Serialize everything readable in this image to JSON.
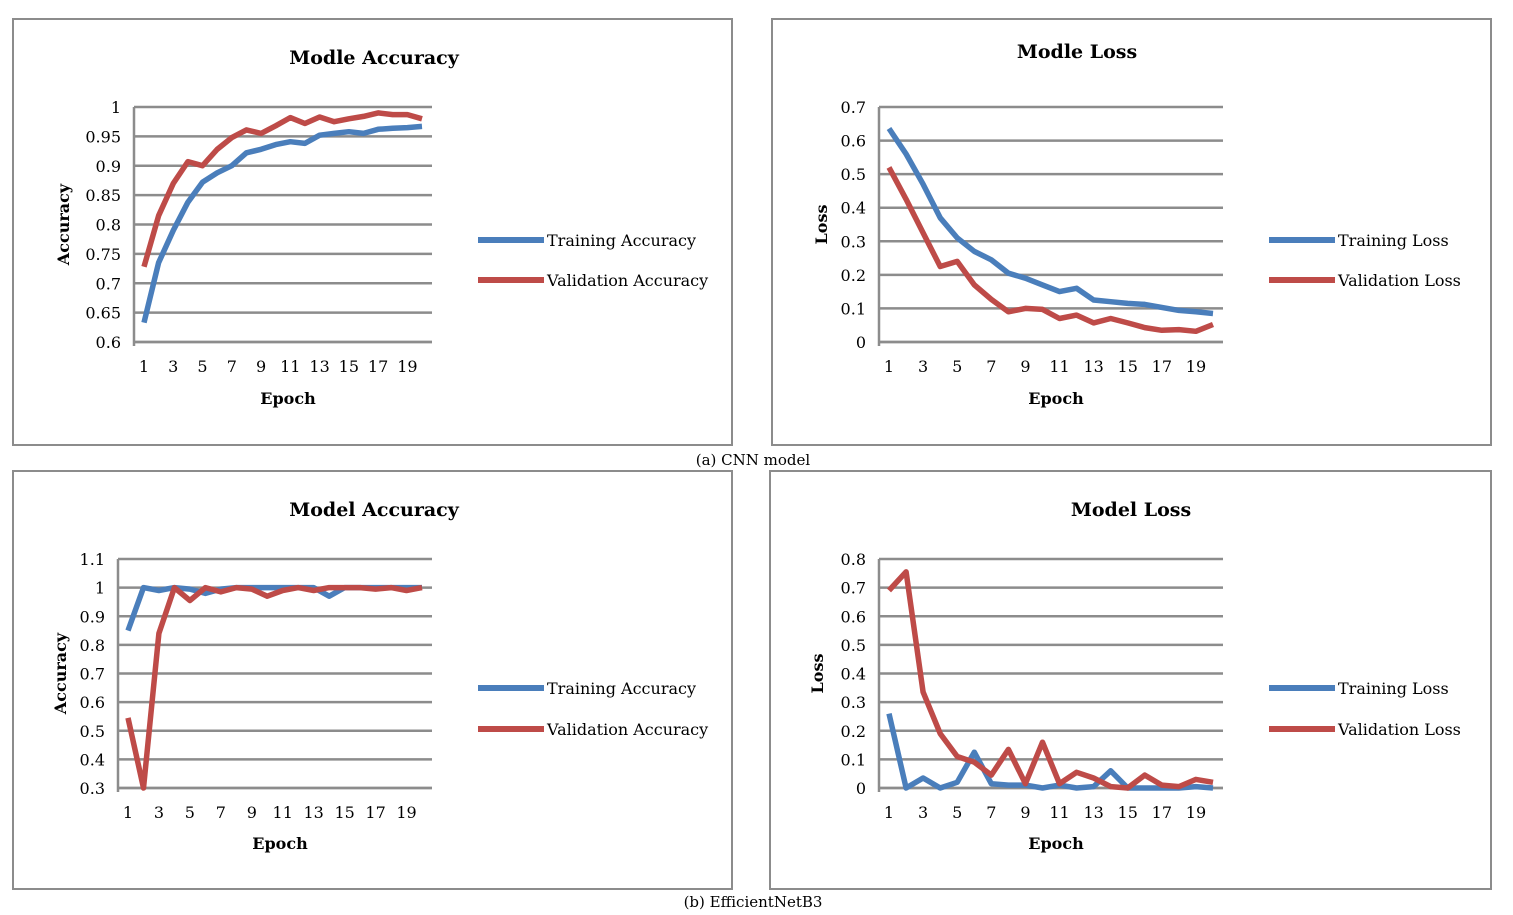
{
  "figure": {
    "caption_a": "(a) CNN model",
    "caption_b": "(b) EfficientNetB3"
  },
  "colors": {
    "training": "#4a7ebb",
    "validation": "#be4b48",
    "grid": "#8c8c8c"
  },
  "chart_data": [
    {
      "type": "line",
      "title": "Modle Accuracy",
      "xlabel": "Epoch",
      "ylabel": "Accuracy",
      "ylim": [
        0.6,
        1
      ],
      "yticks": [
        "0.6",
        "0.65",
        "0.7",
        "0.75",
        "0.8",
        "0.85",
        "0.9",
        "0.95",
        "1"
      ],
      "x": [
        1,
        2,
        3,
        4,
        5,
        6,
        7,
        8,
        9,
        10,
        11,
        12,
        13,
        14,
        15,
        16,
        17,
        18,
        19,
        20
      ],
      "xtick_labels": [
        "1",
        "3",
        "5",
        "7",
        "9",
        "11",
        "13",
        "15",
        "17",
        "19"
      ],
      "grid": true,
      "legend": "right",
      "series": [
        {
          "name": "Training Accuracy",
          "values": [
            0.633,
            0.735,
            0.79,
            0.838,
            0.872,
            0.888,
            0.9,
            0.922,
            0.928,
            0.936,
            0.941,
            0.938,
            0.952,
            0.955,
            0.958,
            0.955,
            0.962,
            0.964,
            0.965,
            0.967
          ]
        },
        {
          "name": "Validation Accuracy",
          "values": [
            0.728,
            0.815,
            0.87,
            0.907,
            0.9,
            0.928,
            0.948,
            0.961,
            0.955,
            0.968,
            0.982,
            0.972,
            0.983,
            0.975,
            0.98,
            0.984,
            0.99,
            0.987,
            0.987,
            0.98
          ]
        }
      ]
    },
    {
      "type": "line",
      "title": "Modle Loss",
      "xlabel": "Epoch",
      "ylabel": "Loss",
      "ylim": [
        0,
        0.7
      ],
      "yticks": [
        "0",
        "0.1",
        "0.2",
        "0.3",
        "0.4",
        "0.5",
        "0.6",
        "0.7"
      ],
      "x": [
        1,
        2,
        3,
        4,
        5,
        6,
        7,
        8,
        9,
        10,
        11,
        12,
        13,
        14,
        15,
        16,
        17,
        18,
        19,
        20
      ],
      "xtick_labels": [
        "1",
        "3",
        "5",
        "7",
        "9",
        "11",
        "13",
        "15",
        "17",
        "19"
      ],
      "grid": true,
      "legend": "right",
      "series": [
        {
          "name": "Training Loss",
          "values": [
            0.636,
            0.56,
            0.47,
            0.37,
            0.31,
            0.27,
            0.245,
            0.205,
            0.19,
            0.17,
            0.15,
            0.16,
            0.125,
            0.12,
            0.115,
            0.112,
            0.103,
            0.094,
            0.09,
            0.085
          ]
        },
        {
          "name": "Validation Loss",
          "values": [
            0.52,
            0.425,
            0.325,
            0.225,
            0.24,
            0.17,
            0.127,
            0.09,
            0.1,
            0.097,
            0.07,
            0.08,
            0.057,
            0.07,
            0.057,
            0.043,
            0.035,
            0.037,
            0.032,
            0.052
          ]
        }
      ]
    },
    {
      "type": "line",
      "title": "Model Accuracy",
      "xlabel": "Epoch",
      "ylabel": "Accuracy",
      "ylim": [
        0.3,
        1.1
      ],
      "yticks": [
        "0.3",
        "0.4",
        "0.5",
        "0.6",
        "0.7",
        "0.8",
        "0.9",
        "1",
        "1.1"
      ],
      "x": [
        1,
        2,
        3,
        4,
        5,
        6,
        7,
        8,
        9,
        10,
        11,
        12,
        13,
        14,
        15,
        16,
        17,
        18,
        19,
        20
      ],
      "xtick_labels": [
        "1",
        "3",
        "5",
        "7",
        "9",
        "11",
        "13",
        "15",
        "17",
        "19"
      ],
      "grid": true,
      "legend": "right",
      "series": [
        {
          "name": "Training Accuracy",
          "values": [
            0.85,
            1.0,
            0.99,
            1.0,
            0.995,
            0.98,
            0.995,
            1.0,
            1.0,
            1.0,
            1.0,
            1.0,
            1.0,
            0.97,
            1.0,
            1.0,
            1.0,
            1.0,
            1.0,
            1.0
          ]
        },
        {
          "name": "Validation Accuracy",
          "values": [
            0.545,
            0.3,
            0.84,
            1.0,
            0.955,
            1.0,
            0.985,
            1.0,
            0.995,
            0.97,
            0.99,
            1.0,
            0.99,
            1.0,
            1.0,
            1.0,
            0.995,
            1.0,
            0.99,
            1.0
          ]
        }
      ]
    },
    {
      "type": "line",
      "title": "Model Loss",
      "xlabel": "Epoch",
      "ylabel": "Loss",
      "ylim": [
        0,
        0.8
      ],
      "yticks": [
        "0",
        "0.1",
        "0.2",
        "0.3",
        "0.4",
        "0.5",
        "0.6",
        "0.7",
        "0.8"
      ],
      "x": [
        1,
        2,
        3,
        4,
        5,
        6,
        7,
        8,
        9,
        10,
        11,
        12,
        13,
        14,
        15,
        16,
        17,
        18,
        19,
        20
      ],
      "xtick_labels": [
        "1",
        "3",
        "5",
        "7",
        "9",
        "11",
        "13",
        "15",
        "17",
        "19"
      ],
      "grid": true,
      "legend": "right",
      "series": [
        {
          "name": "Training Loss",
          "values": [
            0.26,
            0.0,
            0.035,
            0.0,
            0.02,
            0.125,
            0.015,
            0.01,
            0.01,
            0.0,
            0.01,
            0.0,
            0.005,
            0.06,
            0.0,
            0.0,
            0.0,
            0.0,
            0.005,
            0.0
          ]
        },
        {
          "name": "Validation Loss",
          "values": [
            0.69,
            0.755,
            0.335,
            0.19,
            0.11,
            0.09,
            0.045,
            0.135,
            0.015,
            0.16,
            0.015,
            0.055,
            0.035,
            0.005,
            0.0,
            0.045,
            0.01,
            0.005,
            0.03,
            0.02
          ]
        }
      ]
    }
  ]
}
